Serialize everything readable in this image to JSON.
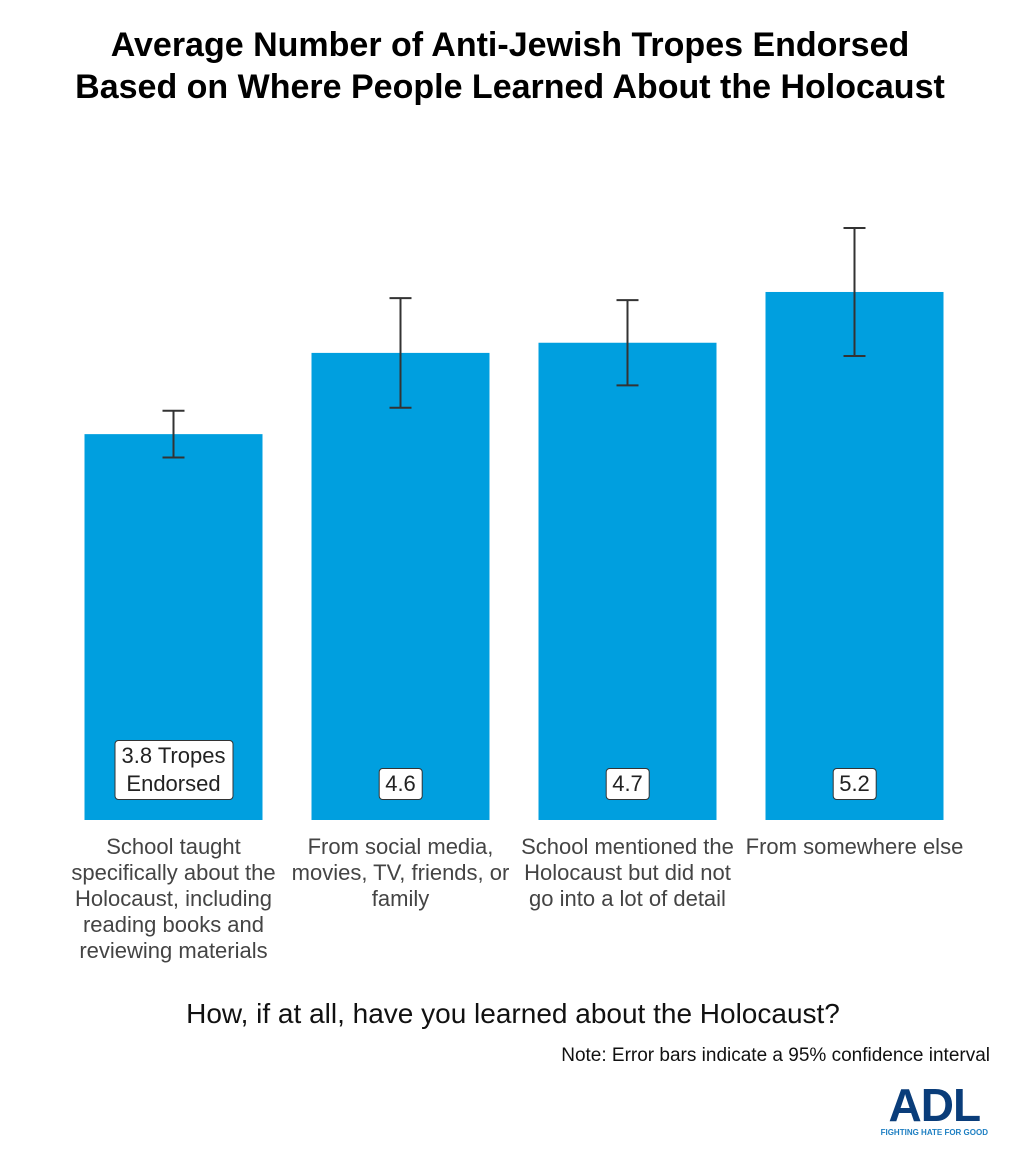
{
  "chart_data": {
    "type": "bar",
    "title": "Average Number of Anti-Jewish Tropes Endorsed Based on Where People Learned About the Holocaust",
    "categories": [
      "School taught specifically about the Holocaust, including reading books and reviewing materials",
      "From social media, movies, TV, friends, or family",
      "School mentioned the Holocaust but did not go into a lot of detail",
      "From somewhere else"
    ],
    "values": [
      3.8,
      4.6,
      4.7,
      5.2
    ],
    "value_labels": [
      "3.8 Tropes Endorsed",
      "4.6",
      "4.7",
      "5.2"
    ],
    "errors": [
      0.23,
      0.54,
      0.42,
      0.63
    ],
    "color": "#009fdf",
    "x_label": "How, if at all, have you learned about the Holocaust?",
    "note": "Note: Error bars indicate a 95% confidence interval"
  },
  "logo": {
    "name": "ADL",
    "tagline": "FIGHTING HATE FOR GOOD"
  }
}
